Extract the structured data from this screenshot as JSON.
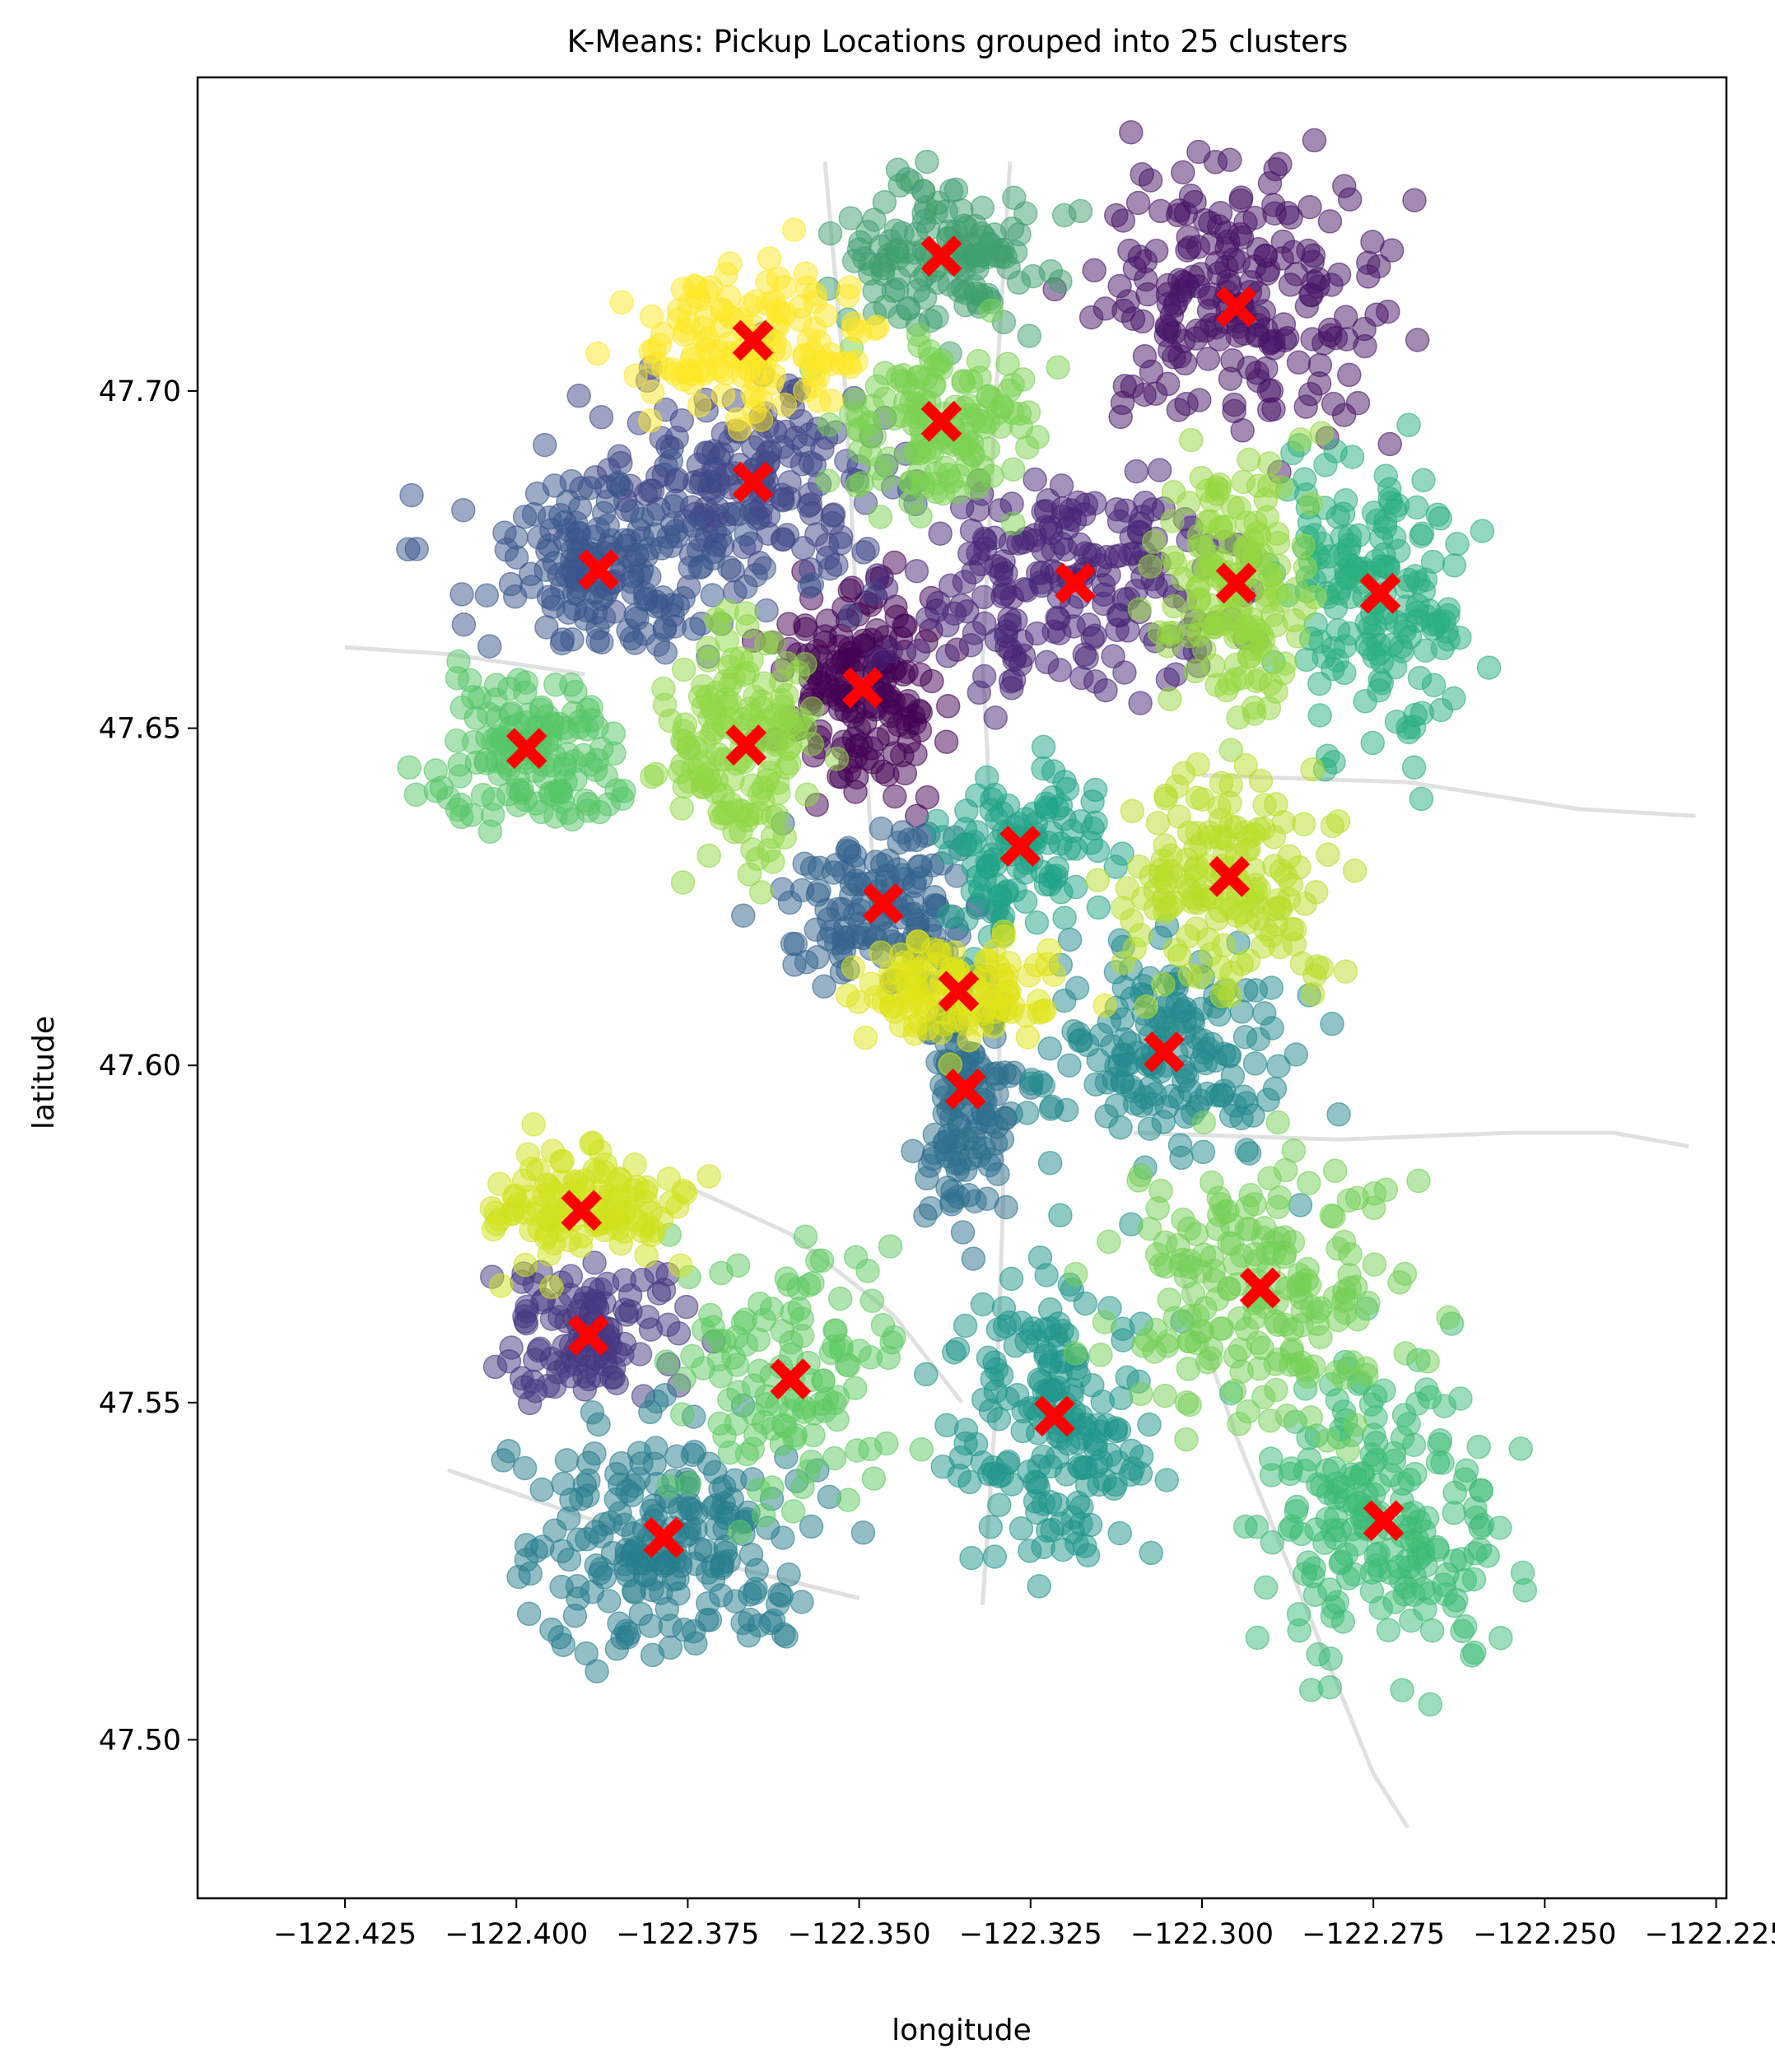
{
  "chart_data": {
    "type": "scatter",
    "title": "K-Means: Pickup Locations grouped into 25 clusters",
    "xlabel": "longitude",
    "ylabel": "latitude",
    "xlim": [
      -122.4465,
      -122.2235
    ],
    "ylim": [
      47.4765,
      47.7465
    ],
    "xticks": [
      -122.425,
      -122.4,
      -122.375,
      -122.35,
      -122.325,
      -122.3,
      -122.275,
      -122.25,
      -122.225
    ],
    "xtick_labels": [
      "−122.425",
      "−122.400",
      "−122.375",
      "−122.350",
      "−122.325",
      "−122.300",
      "−122.275",
      "−122.250",
      "−122.225"
    ],
    "yticks": [
      47.5,
      47.55,
      47.6,
      47.65,
      47.7
    ],
    "ytick_labels": [
      "47.50",
      "47.55",
      "47.60",
      "47.65",
      "47.70"
    ],
    "grid": false,
    "legend": "none",
    "point_colormap": "viridis",
    "point_alpha": 0.5,
    "centroid_marker": "X",
    "centroid_color": "#ff0000",
    "road_color": "#cccccc",
    "clusters": [
      {
        "id": 0,
        "color": "#440154",
        "centroid": [
          -122.3495,
          47.656
        ],
        "spread": [
          0.012,
          0.015
        ],
        "n": 160
      },
      {
        "id": 1,
        "color": "#481567",
        "centroid": [
          -122.295,
          47.7125
        ],
        "spread": [
          0.021,
          0.02
        ],
        "n": 210
      },
      {
        "id": 2,
        "color": "#482677",
        "centroid": [
          -122.3185,
          47.6715
        ],
        "spread": [
          0.023,
          0.017
        ],
        "n": 200
      },
      {
        "id": 3,
        "color": "#453781",
        "centroid": [
          -122.3895,
          47.56
        ],
        "spread": [
          0.014,
          0.011
        ],
        "n": 110
      },
      {
        "id": 4,
        "color": "#404788",
        "centroid": [
          -122.3655,
          47.6865
        ],
        "spread": [
          0.023,
          0.015
        ],
        "n": 190
      },
      {
        "id": 5,
        "color": "#39568c",
        "centroid": [
          -122.388,
          47.6735
        ],
        "spread": [
          0.022,
          0.013
        ],
        "n": 160
      },
      {
        "id": 6,
        "color": "#33638d",
        "centroid": [
          -122.3465,
          47.624
        ],
        "spread": [
          0.015,
          0.012
        ],
        "n": 130
      },
      {
        "id": 7,
        "color": "#2d708e",
        "centroid": [
          -122.3345,
          47.5965
        ],
        "spread": [
          0.007,
          0.02
        ],
        "n": 130
      },
      {
        "id": 8,
        "color": "#287d8e",
        "centroid": [
          -122.3785,
          47.53
        ],
        "spread": [
          0.022,
          0.018
        ],
        "n": 210
      },
      {
        "id": 9,
        "color": "#238a8d",
        "centroid": [
          -122.3055,
          47.602
        ],
        "spread": [
          0.017,
          0.015
        ],
        "n": 170
      },
      {
        "id": 10,
        "color": "#1f968b",
        "centroid": [
          -122.3215,
          47.548
        ],
        "spread": [
          0.014,
          0.022
        ],
        "n": 180
      },
      {
        "id": 11,
        "color": "#20a387",
        "centroid": [
          -122.3265,
          47.6325
        ],
        "spread": [
          0.012,
          0.013
        ],
        "n": 110
      },
      {
        "id": 12,
        "color": "#29af7f",
        "centroid": [
          -122.274,
          47.67
        ],
        "spread": [
          0.014,
          0.022
        ],
        "n": 170
      },
      {
        "id": 13,
        "color": "#3cbb75",
        "centroid": [
          -122.2735,
          47.5325
        ],
        "spread": [
          0.017,
          0.023
        ],
        "n": 200
      },
      {
        "id": 14,
        "color": "#55c667",
        "centroid": [
          -122.3985,
          47.647
        ],
        "spread": [
          0.013,
          0.011
        ],
        "n": 140
      },
      {
        "id": 15,
        "color": "#73d055",
        "centroid": [
          -122.2915,
          47.567
        ],
        "spread": [
          0.02,
          0.02
        ],
        "n": 190
      },
      {
        "id": 16,
        "color": "#95d840",
        "centroid": [
          -122.295,
          47.6715
        ],
        "spread": [
          0.012,
          0.02
        ],
        "n": 150
      },
      {
        "id": 17,
        "color": "#3f9f6e",
        "centroid": [
          -122.338,
          47.72
        ],
        "spread": [
          0.015,
          0.011
        ],
        "n": 130
      },
      {
        "id": 18,
        "color": "#5ec962",
        "centroid": [
          -122.36,
          47.5535
        ],
        "spread": [
          0.016,
          0.019
        ],
        "n": 120
      },
      {
        "id": 19,
        "color": "#7ad151",
        "centroid": [
          -122.338,
          47.6955
        ],
        "spread": [
          0.015,
          0.013
        ],
        "n": 140
      },
      {
        "id": 20,
        "color": "#8fd744",
        "centroid": [
          -122.3665,
          47.6475
        ],
        "spread": [
          0.011,
          0.019
        ],
        "n": 150
      },
      {
        "id": 21,
        "color": "#b8de29",
        "centroid": [
          -122.296,
          47.628
        ],
        "spread": [
          0.015,
          0.016
        ],
        "n": 160
      },
      {
        "id": 22,
        "color": "#d0e11c",
        "centroid": [
          -122.3905,
          47.5785
        ],
        "spread": [
          0.015,
          0.009
        ],
        "n": 120
      },
      {
        "id": 23,
        "color": "#dfe318",
        "centroid": [
          -122.3355,
          47.611
        ],
        "spread": [
          0.015,
          0.008
        ],
        "n": 120
      },
      {
        "id": 24,
        "color": "#fde725",
        "centroid": [
          -122.3655,
          47.7075
        ],
        "spread": [
          0.018,
          0.012
        ],
        "n": 140
      }
    ]
  }
}
